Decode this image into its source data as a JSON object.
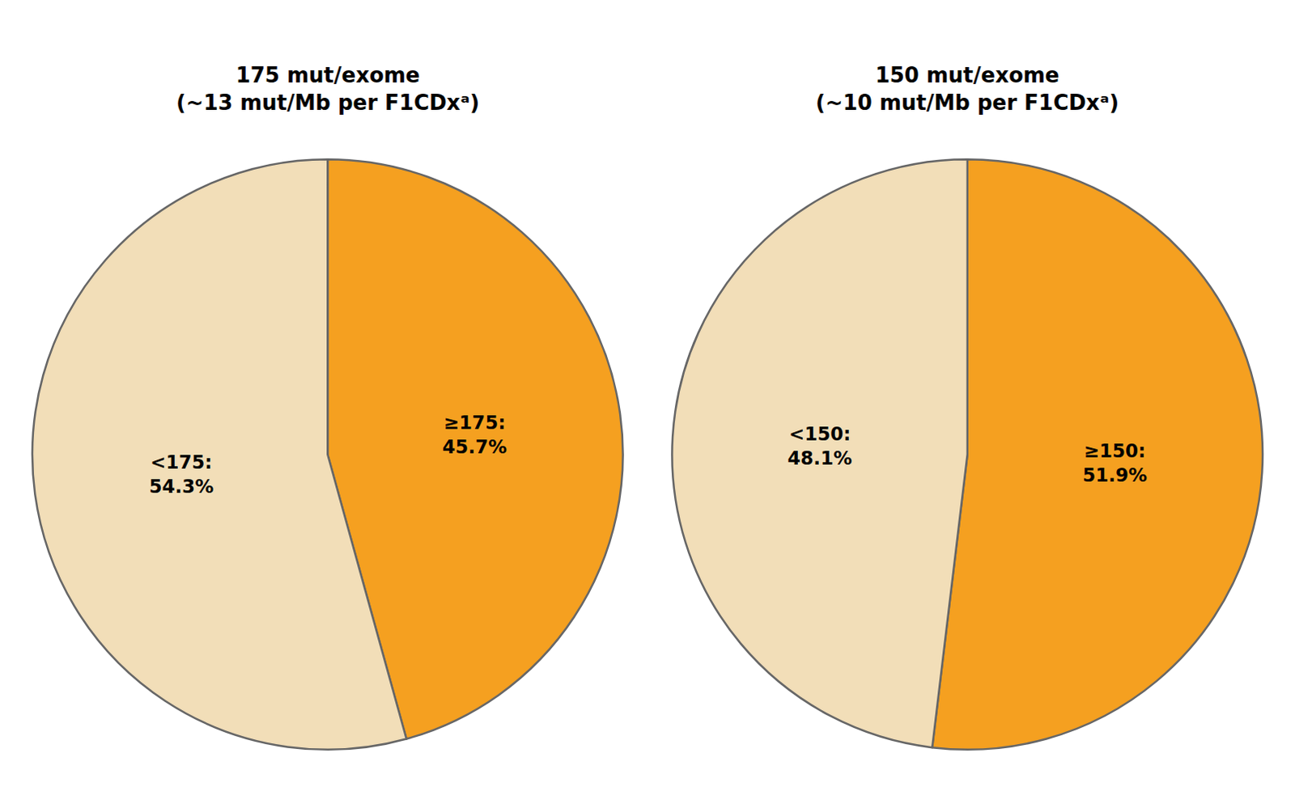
{
  "chart_data": [
    {
      "type": "pie",
      "title": "175 mut/exome\n(~13 mut/Mb per F1CDxᵃ)",
      "categories": [
        "≥175:",
        "<175:"
      ],
      "values": [
        45.7,
        54.3
      ],
      "value_labels": [
        "45.7%",
        "54.3%"
      ],
      "colors": [
        "#F5A020",
        "#F2DEB8"
      ],
      "data_labels": true
    },
    {
      "type": "pie",
      "title": "150 mut/exome\n(~10 mut/Mb per F1CDxᵃ)",
      "categories": [
        "≥150:",
        "<150:"
      ],
      "values": [
        51.9,
        48.1
      ],
      "value_labels": [
        "51.9%",
        "48.1%"
      ],
      "colors": [
        "#F5A020",
        "#F2DEB8"
      ],
      "data_labels": true
    }
  ]
}
